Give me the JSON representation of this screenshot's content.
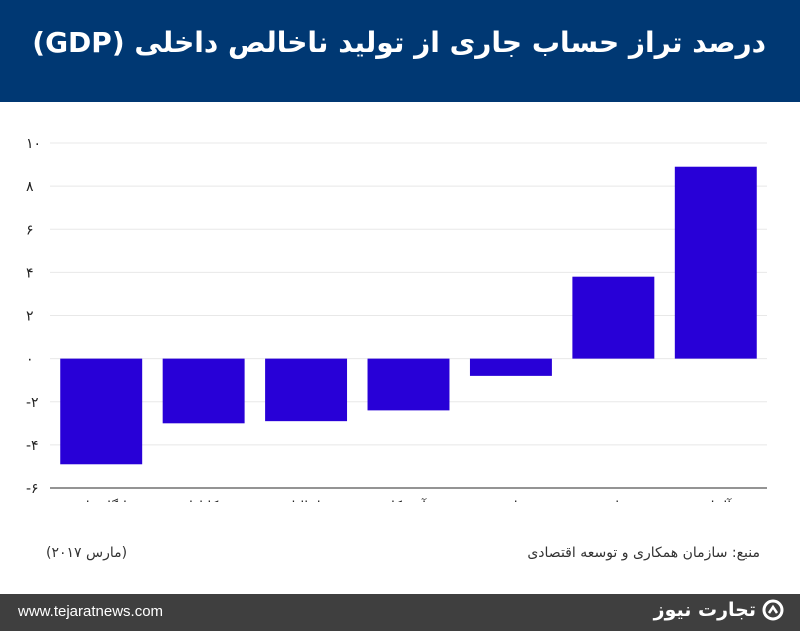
{
  "header": {
    "title": "درصد تراز حساب جاری از تولید ناخالص داخلی (GDP)"
  },
  "colors": {
    "header_bg": "#003873",
    "bar": "#2800d7",
    "footer_bg": "#3f3f3f"
  },
  "chart_data": {
    "type": "bar",
    "title": "درصد تراز حساب جاری از تولید ناخالص داخلی (GDP)",
    "categories": [
      "انگلستان",
      "کانادا",
      "ایتالیا",
      "آمریکا",
      "فرانسه",
      "ژاپن",
      "آلمان"
    ],
    "values": [
      -4.9,
      -3.0,
      -2.9,
      -2.4,
      -0.8,
      3.8,
      8.9
    ],
    "ylim": [
      -6,
      10
    ],
    "yticks": [
      10,
      8,
      6,
      4,
      2,
      0,
      -2,
      -4,
      -6
    ],
    "ytick_labels": [
      "۱۰",
      "۸",
      "۶",
      "۴",
      "۲",
      "۰",
      "-۲",
      "-۴",
      "-۶"
    ],
    "grid": true
  },
  "notes": {
    "source": "منبع: سازمان همکاری و توسعه اقتصادی",
    "date": "(مارس ۲۰۱۷)"
  },
  "footer": {
    "url": "www.tejaratnews.com",
    "brand": "تجارت نیوز",
    "brand_icon": "tejaratnews-logo-icon"
  }
}
